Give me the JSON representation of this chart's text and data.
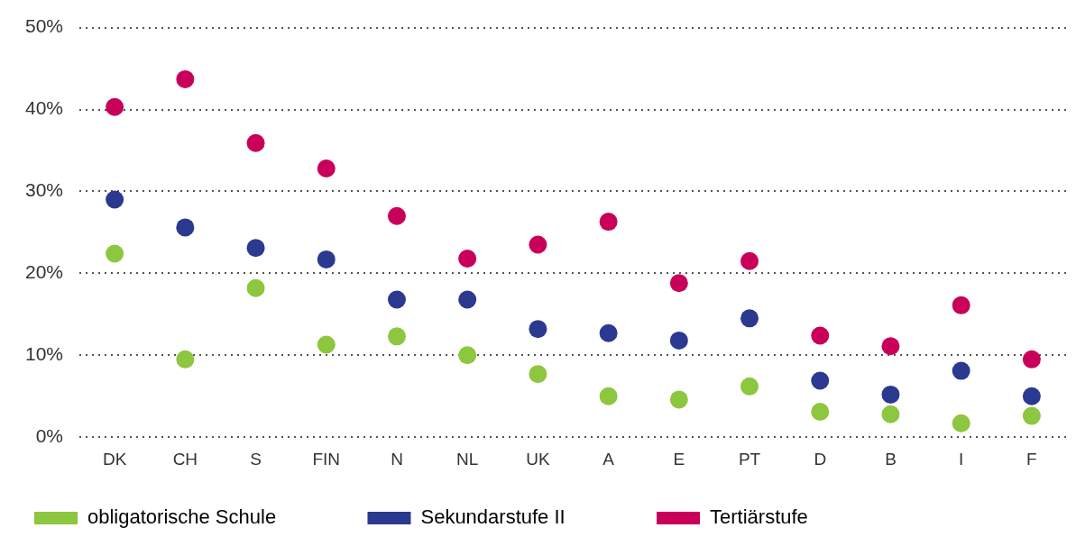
{
  "chart_data": {
    "type": "scatter",
    "categories": [
      "DK",
      "CH",
      "S",
      "FIN",
      "N",
      "NL",
      "UK",
      "A",
      "E",
      "PT",
      "D",
      "B",
      "I",
      "F"
    ],
    "series": [
      {
        "name": "obligatorische Schule",
        "color": "#8dc63f",
        "values": [
          22.4,
          9.5,
          18.2,
          11.3,
          12.3,
          10.0,
          7.7,
          5.0,
          4.6,
          6.2,
          3.1,
          2.8,
          1.7,
          2.6
        ]
      },
      {
        "name": "Sekundarstufe II",
        "color": "#2b3990",
        "values": [
          29.0,
          25.6,
          23.1,
          21.7,
          16.8,
          16.8,
          13.2,
          12.7,
          11.8,
          14.5,
          6.9,
          5.2,
          8.1,
          5.0
        ]
      },
      {
        "name": "Tertiärstufe",
        "color": "#c8005a",
        "values": [
          40.3,
          43.7,
          35.9,
          32.8,
          27.0,
          21.8,
          23.5,
          26.3,
          18.8,
          21.5,
          12.4,
          11.1,
          16.1,
          9.5
        ]
      }
    ],
    "ylim": [
      0,
      50
    ],
    "yticks": [
      {
        "value": 0,
        "label": "0%"
      },
      {
        "value": 10,
        "label": "10%"
      },
      {
        "value": 20,
        "label": "20%"
      },
      {
        "value": 30,
        "label": "30%"
      },
      {
        "value": 40,
        "label": "40%"
      },
      {
        "value": 50,
        "label": "50%"
      }
    ],
    "grid": "y",
    "legend": "bottom left",
    "marker": "circle"
  }
}
